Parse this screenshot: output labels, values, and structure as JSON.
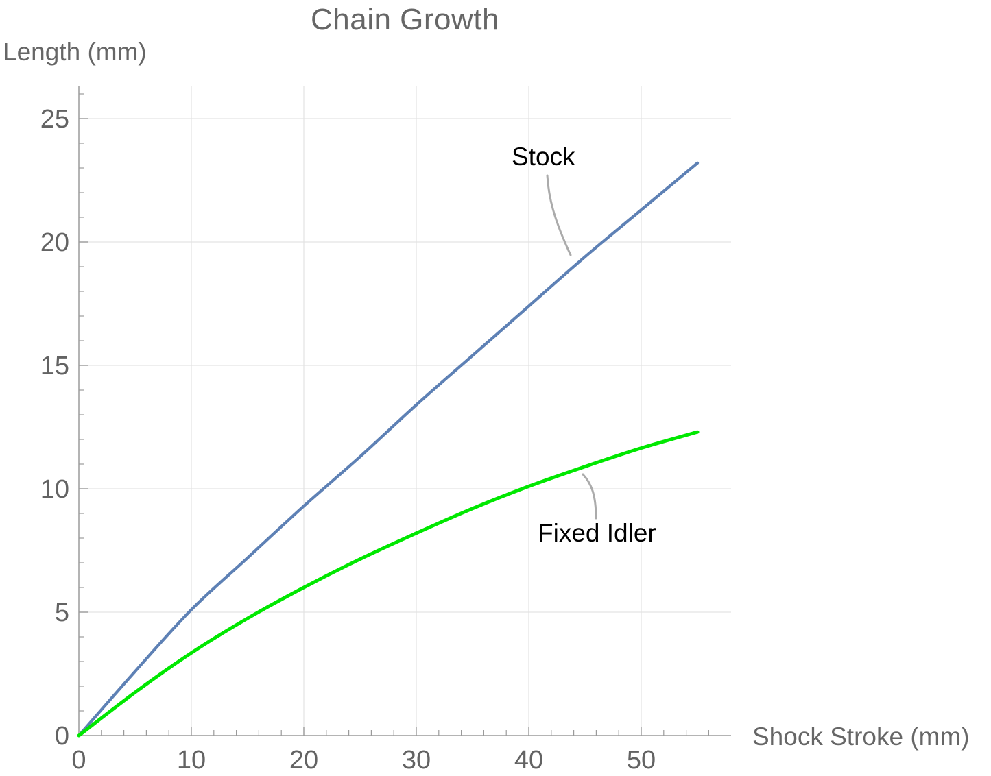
{
  "chart_data": {
    "type": "line",
    "title": "Chain Growth",
    "xlabel": "Shock Stroke (mm)",
    "ylabel": "Length (mm)",
    "xlim": [
      0,
      58
    ],
    "ylim": [
      0,
      26.3
    ],
    "x_ticks": [
      0,
      10,
      20,
      30,
      40,
      50
    ],
    "y_ticks": [
      0,
      5,
      10,
      15,
      20,
      25
    ],
    "x_minor_tick_step": 2,
    "y_minor_tick_step": 1,
    "grid": true,
    "legend_position": "inline-callouts",
    "x": [
      0,
      5,
      10,
      15,
      20,
      25,
      30,
      35,
      40,
      45,
      50,
      55
    ],
    "series": [
      {
        "name": "Stock",
        "color": "#5e81b5",
        "values": [
          0,
          2.6,
          5.1,
          7.2,
          9.3,
          11.3,
          13.4,
          15.4,
          17.4,
          19.4,
          21.3,
          23.2
        ]
      },
      {
        "name": "Fixed Idler",
        "color": "#00e800",
        "values": [
          0,
          1.75,
          3.35,
          4.75,
          6.0,
          7.15,
          8.2,
          9.2,
          10.1,
          10.9,
          11.65,
          12.3
        ]
      }
    ],
    "annotations": [
      {
        "text": "Stock",
        "series": "Stock"
      },
      {
        "text": "Fixed Idler",
        "series": "Fixed Idler"
      }
    ],
    "colors": {
      "axis": "#9b9b9b",
      "grid": "#e3e3e3",
      "tick_labels": "#636363",
      "annotation_text": "#000000",
      "callout": "#ababab"
    }
  }
}
